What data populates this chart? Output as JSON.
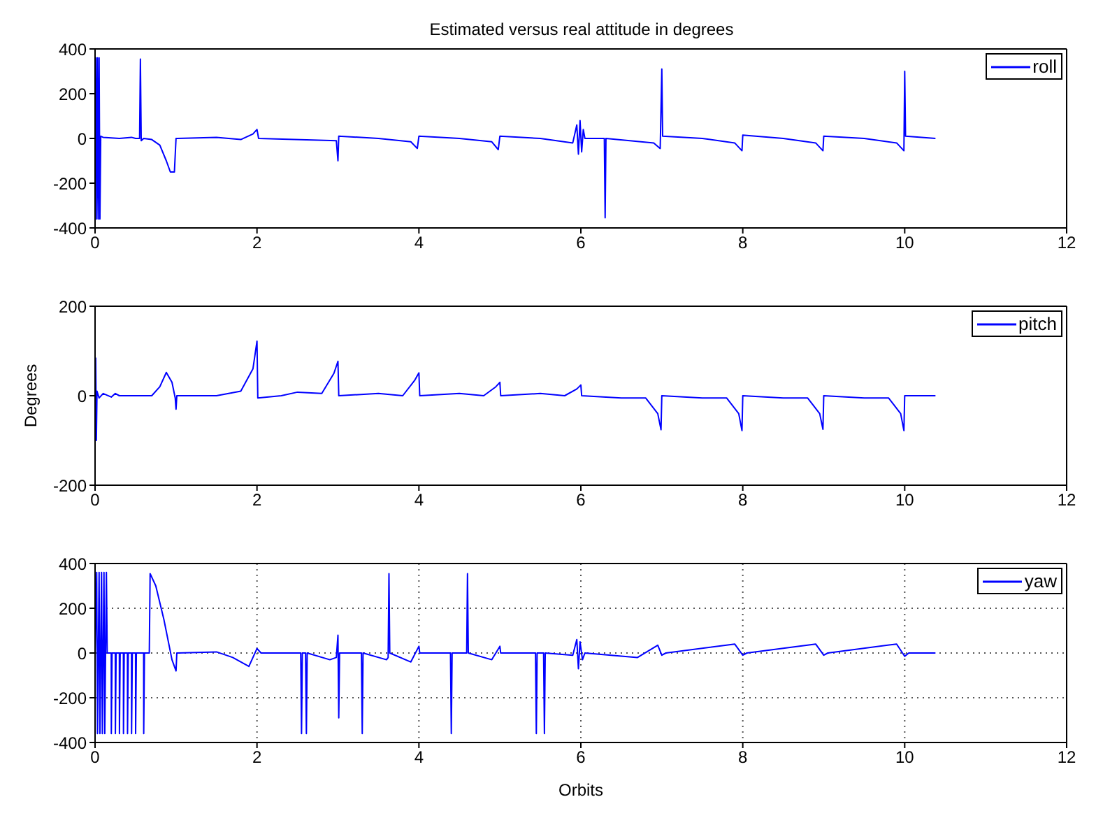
{
  "chart_data": [
    {
      "type": "line",
      "title": "Estimated versus real attitude in degrees",
      "xlim": [
        0,
        12
      ],
      "xticks": [
        0,
        2,
        4,
        6,
        8,
        10,
        12
      ],
      "ylim": [
        -400,
        400
      ],
      "yticks": [
        -400,
        -200,
        0,
        200,
        400
      ],
      "grid": false,
      "legend": "top right",
      "marker": "none",
      "line_style": "solid",
      "series": [
        {
          "name": "roll",
          "color": "#0000ff",
          "x": [
            0,
            0.01,
            0.02,
            0.03,
            0.04,
            0.05,
            0.06,
            0.07,
            0.1,
            0.3,
            0.45,
            0.5,
            0.55,
            0.56,
            0.57,
            0.6,
            0.7,
            0.8,
            0.88,
            0.93,
            0.98,
            1.0,
            1.5,
            1.8,
            1.95,
            2.0,
            2.02,
            2.98,
            3.0,
            3.01,
            3.5,
            3.9,
            3.98,
            4.0,
            4.5,
            4.9,
            4.98,
            5.0,
            5.5,
            5.9,
            5.95,
            5.97,
            5.99,
            6.01,
            6.03,
            6.05,
            6.29,
            6.3,
            6.31,
            6.9,
            6.98,
            7.0,
            7.01,
            7.5,
            7.9,
            7.99,
            8.0,
            8.5,
            8.9,
            8.99,
            9.0,
            9.5,
            9.9,
            9.99,
            10.0,
            10.01,
            10.38
          ],
          "values": [
            0,
            360,
            -360,
            360,
            -360,
            360,
            -360,
            10,
            5,
            0,
            5,
            0,
            0,
            355,
            -10,
            0,
            -5,
            -30,
            -100,
            -150,
            -150,
            0,
            5,
            -5,
            20,
            40,
            0,
            -10,
            -100,
            10,
            0,
            -15,
            -45,
            10,
            0,
            -15,
            -50,
            10,
            0,
            -20,
            60,
            -70,
            80,
            -60,
            40,
            0,
            0,
            -355,
            0,
            -20,
            -45,
            310,
            10,
            0,
            -20,
            -55,
            15,
            0,
            -20,
            -55,
            10,
            0,
            -20,
            -55,
            300,
            10,
            0
          ]
        }
      ]
    },
    {
      "type": "line",
      "ylabel": "Degrees",
      "xlim": [
        0,
        12
      ],
      "xticks": [
        0,
        2,
        4,
        6,
        8,
        10,
        12
      ],
      "ylim": [
        -200,
        200
      ],
      "yticks": [
        -200,
        0,
        200
      ],
      "grid": false,
      "legend": "top right",
      "marker": "none",
      "line_style": "solid",
      "series": [
        {
          "name": "pitch",
          "color": "#0000ff",
          "x": [
            0.008,
            0.016,
            0.024,
            0.05,
            0.1,
            0.2,
            0.25,
            0.3,
            0.7,
            0.8,
            0.88,
            0.95,
            0.99,
            1.0,
            1.01,
            1.5,
            1.8,
            1.95,
            2.0,
            2.01,
            2.3,
            2.5,
            2.8,
            2.95,
            3.0,
            3.01,
            3.5,
            3.8,
            3.95,
            4.0,
            4.01,
            4.5,
            4.8,
            4.95,
            5.0,
            5.01,
            5.5,
            5.8,
            5.95,
            6.0,
            6.01,
            6.5,
            6.8,
            6.95,
            6.99,
            7.0,
            7.5,
            7.8,
            7.95,
            7.99,
            8.0,
            8.5,
            8.8,
            8.95,
            8.99,
            9.0,
            9.5,
            9.8,
            9.95,
            9.99,
            10.0,
            10.38
          ],
          "values": [
            85,
            -100,
            10,
            -5,
            5,
            -3,
            5,
            0,
            0,
            20,
            52,
            30,
            -5,
            -30,
            0,
            0,
            10,
            60,
            122,
            -5,
            0,
            8,
            5,
            50,
            77,
            0,
            5,
            0,
            35,
            51,
            0,
            5,
            0,
            20,
            30,
            0,
            5,
            0,
            15,
            24,
            0,
            -5,
            -5,
            -40,
            -76,
            0,
            -5,
            -5,
            -40,
            -78,
            0,
            -5,
            -5,
            -40,
            -75,
            0,
            -5,
            -5,
            -40,
            -78,
            0,
            0
          ]
        }
      ]
    },
    {
      "type": "line",
      "xlabel": "Orbits",
      "xlim": [
        0,
        12
      ],
      "xticks": [
        0,
        2,
        4,
        6,
        8,
        10,
        12
      ],
      "ylim": [
        -400,
        400
      ],
      "yticks": [
        -400,
        -200,
        0,
        200,
        400
      ],
      "grid": true,
      "legend": "top right",
      "marker": "none",
      "line_style": "solid",
      "series": [
        {
          "name": "yaw",
          "color": "#0000ff",
          "x": [
            0,
            0.02,
            0.03,
            0.05,
            0.06,
            0.08,
            0.09,
            0.11,
            0.12,
            0.14,
            0.15,
            0.2,
            0.201,
            0.21,
            0.25,
            0.251,
            0.26,
            0.3,
            0.301,
            0.31,
            0.35,
            0.351,
            0.36,
            0.4,
            0.401,
            0.41,
            0.45,
            0.451,
            0.46,
            0.5,
            0.501,
            0.51,
            0.6,
            0.601,
            0.61,
            0.67,
            0.68,
            0.75,
            0.85,
            0.95,
            1.0,
            1.01,
            1.5,
            1.7,
            1.9,
            2.0,
            2.05,
            2.54,
            2.55,
            2.56,
            2.6,
            2.61,
            2.62,
            2.9,
            2.98,
            3.0,
            3.01,
            3.02,
            3.29,
            3.3,
            3.31,
            3.6,
            3.62,
            3.63,
            3.64,
            3.9,
            4.0,
            4.01,
            4.39,
            4.4,
            4.41,
            4.59,
            4.6,
            4.61,
            4.9,
            5.0,
            5.01,
            5.44,
            5.45,
            5.46,
            5.54,
            5.55,
            5.56,
            5.9,
            5.95,
            5.97,
            5.99,
            6.02,
            6.05,
            6.7,
            6.95,
            7.0,
            7.05,
            7.9,
            8.0,
            8.05,
            8.9,
            9.0,
            9.05,
            9.9,
            10.0,
            10.05,
            10.38
          ],
          "values": [
            0,
            360,
            -360,
            360,
            -360,
            360,
            -360,
            360,
            -360,
            360,
            0,
            0,
            -360,
            0,
            0,
            -360,
            0,
            0,
            -360,
            0,
            0,
            -360,
            0,
            0,
            -360,
            0,
            0,
            -360,
            0,
            0,
            -360,
            0,
            0,
            -360,
            0,
            0,
            355,
            300,
            150,
            -30,
            -80,
            0,
            5,
            -20,
            -60,
            20,
            0,
            0,
            -360,
            0,
            0,
            -360,
            0,
            -30,
            -20,
            80,
            -290,
            0,
            0,
            -360,
            0,
            -30,
            -20,
            355,
            0,
            -40,
            30,
            0,
            0,
            -360,
            0,
            0,
            355,
            0,
            -30,
            30,
            0,
            0,
            -360,
            0,
            0,
            -360,
            0,
            -10,
            60,
            -70,
            50,
            -30,
            0,
            -20,
            35,
            -10,
            0,
            40,
            -10,
            0,
            40,
            -10,
            0,
            40,
            -15,
            0,
            0
          ]
        }
      ]
    }
  ]
}
